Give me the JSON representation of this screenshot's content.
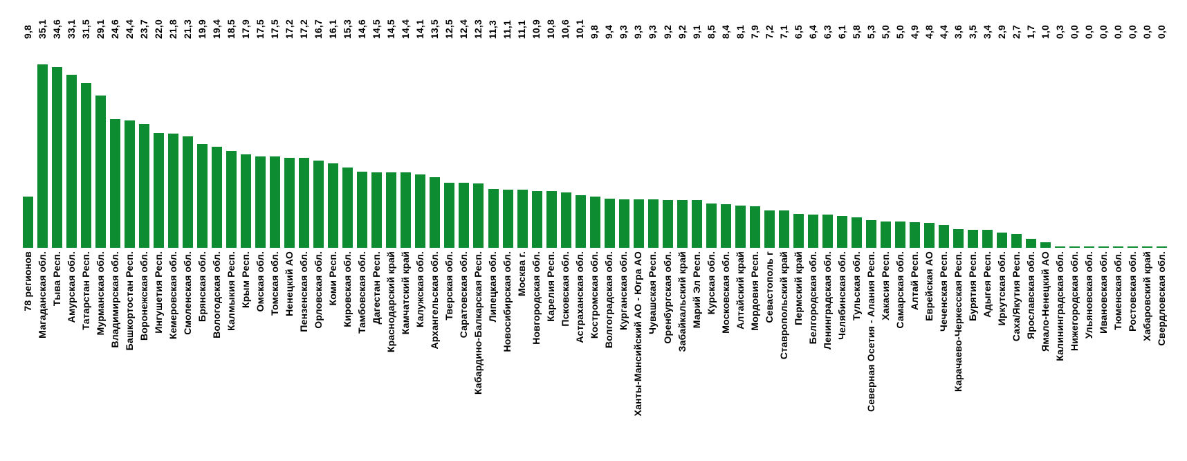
{
  "chart_data": {
    "type": "bar",
    "title": "",
    "xlabel": "",
    "ylabel": "",
    "ylim": [
      0,
      40
    ],
    "grid": false,
    "axis_lines": false,
    "legend": false,
    "bar_color": "#0E8C32",
    "text_color": "#000000",
    "background_color": "#FFFFFF",
    "decimal_separator": ",",
    "value_labels_position": "top-row-rotated-90",
    "category_labels_position": "bottom-rotated-90",
    "categories": [
      "78 регионов",
      "Магаданская обл.",
      "Тыва Респ.",
      "Амурская обл.",
      "Татарстан Респ.",
      "Мурманская обл.",
      "Владимирская обл.",
      "Башкортостан Респ.",
      "Воронежская обл.",
      "Ингушетия Респ.",
      "Кемеровская обл.",
      "Смоленская обл.",
      "Брянская обл.",
      "Вологодская обл.",
      "Калмыкия Респ.",
      "Крым Респ.",
      "Омская обл.",
      "Томская обл.",
      "Ненецкий АО",
      "Пензенская обл.",
      "Орловская обл.",
      "Коми Респ.",
      "Кировская обл.",
      "Тамбовская обл.",
      "Дагестан Респ.",
      "Краснодарский край",
      "Камчатский край",
      "Калужская обл.",
      "Архангельская обл.",
      "Тверская обл.",
      "Саратовская обл.",
      "Кабардино-Балкарская Респ.",
      "Липецкая обл.",
      "Новосибирская обл.",
      "Москва г.",
      "Новгородская обл.",
      "Карелия Респ.",
      "Псковская обл.",
      "Астраханская обл.",
      "Костромская обл.",
      "Волгоградская обл.",
      "Курганская обл.",
      "Ханты-Мансийский АО - Югра АО",
      "Чувашская Респ.",
      "Оренбургская обл.",
      "Забайкальский край",
      "Марий Эл Респ.",
      "Курская обл.",
      "Московская обл.",
      "Алтайский край",
      "Мордовия Респ.",
      "Севастополь г",
      "Ставропольский край",
      "Пермский край",
      "Белгородская обл.",
      "Ленинградская обл.",
      "Челябинская обл.",
      "Тульская обл.",
      "Северная Осетия - Алания Респ.",
      "Хакасия Респ.",
      "Самарская обл.",
      "Алтай Респ.",
      "Еврейская АО",
      "Чеченская Респ.",
      "Карачаево-Черкесская Респ.",
      "Бурятия Респ.",
      "Адыгея Респ.",
      "Иркутская обл.",
      "Саха/Якутия Респ.",
      "Ярославская обл.",
      "Ямало-Ненецкий АО",
      "Калининградская обл.",
      "Нижегородская обл.",
      "Ульяновская обл.",
      "Ивановская обл.",
      "Тюменская обл.",
      "Ростовская обл.",
      "Хабаровский край",
      "Свердловская обл."
    ],
    "values": [
      9.8,
      35.1,
      34.6,
      33.1,
      31.5,
      29.1,
      24.6,
      24.4,
      23.7,
      22.0,
      21.8,
      21.3,
      19.9,
      19.4,
      18.5,
      17.9,
      17.5,
      17.5,
      17.2,
      17.2,
      16.7,
      16.1,
      15.3,
      14.6,
      14.5,
      14.5,
      14.4,
      14.1,
      13.5,
      12.5,
      12.4,
      12.3,
      11.3,
      11.1,
      11.1,
      10.9,
      10.8,
      10.6,
      10.1,
      9.8,
      9.4,
      9.3,
      9.3,
      9.3,
      9.2,
      9.2,
      9.1,
      8.5,
      8.4,
      8.1,
      7.9,
      7.2,
      7.1,
      6.5,
      6.4,
      6.3,
      6.1,
      5.8,
      5.3,
      5.0,
      5.0,
      4.9,
      4.8,
      4.4,
      3.6,
      3.5,
      3.4,
      2.9,
      2.7,
      1.7,
      1.0,
      0.3,
      0.0,
      0.0,
      0.0,
      0.0,
      0.0,
      0.0,
      0.0
    ],
    "value_labels": [
      "9,8",
      "35,1",
      "34,6",
      "33,1",
      "31,5",
      "29,1",
      "24,6",
      "24,4",
      "23,7",
      "22,0",
      "21,8",
      "21,3",
      "19,9",
      "19,4",
      "18,5",
      "17,9",
      "17,5",
      "17,5",
      "17,2",
      "17,2",
      "16,7",
      "16,1",
      "15,3",
      "14,6",
      "14,5",
      "14,5",
      "14,4",
      "14,1",
      "13,5",
      "12,5",
      "12,4",
      "12,3",
      "11,3",
      "11,1",
      "11,1",
      "10,9",
      "10,8",
      "10,6",
      "10,1",
      "9,8",
      "9,4",
      "9,3",
      "9,3",
      "9,3",
      "9,2",
      "9,2",
      "9,1",
      "8,5",
      "8,4",
      "8,1",
      "7,9",
      "7,2",
      "7,1",
      "6,5",
      "6,4",
      "6,3",
      "6,1",
      "5,8",
      "5,3",
      "5,0",
      "5,0",
      "4,9",
      "4,8",
      "4,4",
      "3,6",
      "3,5",
      "3,4",
      "2,9",
      "2,7",
      "1,7",
      "1,0",
      "0,3",
      "0,0",
      "0,0",
      "0,0",
      "0,0",
      "0,0",
      "0,0",
      "0,0"
    ]
  }
}
